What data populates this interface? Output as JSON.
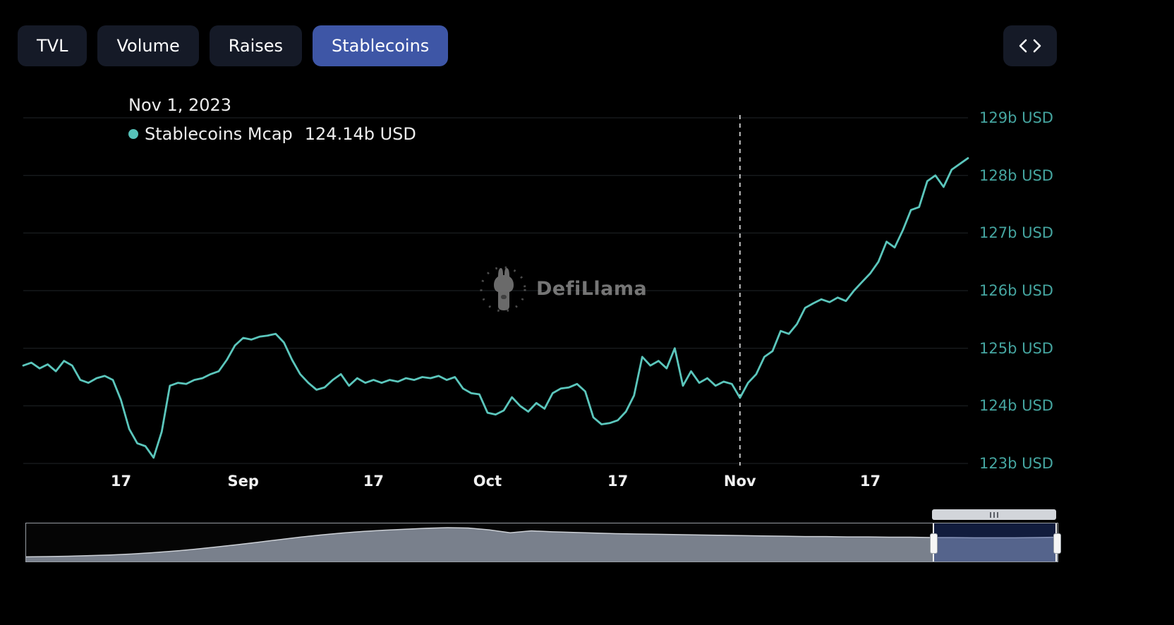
{
  "tabs": {
    "items": [
      {
        "label": "TVL",
        "active": false
      },
      {
        "label": "Volume",
        "active": false
      },
      {
        "label": "Raises",
        "active": false
      },
      {
        "label": "Stablecoins",
        "active": true
      }
    ]
  },
  "toolbar": {
    "embed_button": "embed-code"
  },
  "tooltip": {
    "date": "Nov 1, 2023",
    "series_name": "Stablecoins Mcap",
    "value": "124.14b USD",
    "dot_color": "#56c2b9"
  },
  "watermark": {
    "label": "DefiLlama"
  },
  "chart_data": {
    "type": "line",
    "title": "Stablecoins Mcap",
    "ylabel": "",
    "xlabel": "",
    "ylim": [
      123,
      129
    ],
    "line_color": "#5bc6bc",
    "axis_label_color": "#45a5a0",
    "grid_color": "#212529",
    "legend_position": "top-left",
    "grid": true,
    "y_ticks": [
      {
        "value": 129,
        "label": "129b USD"
      },
      {
        "value": 128,
        "label": "128b USD"
      },
      {
        "value": 127,
        "label": "127b USD"
      },
      {
        "value": 126,
        "label": "126b USD"
      },
      {
        "value": 125,
        "label": "125b USD"
      },
      {
        "value": 124,
        "label": "124b USD"
      },
      {
        "value": 123,
        "label": "123b USD"
      }
    ],
    "x_ticks": [
      {
        "label": "17",
        "day_index": 12,
        "date": "2023-08-17"
      },
      {
        "label": "Sep",
        "day_index": 27,
        "date": "2023-09-01"
      },
      {
        "label": "17",
        "day_index": 43,
        "date": "2023-09-17"
      },
      {
        "label": "Oct",
        "day_index": 57,
        "date": "2023-10-01"
      },
      {
        "label": "17",
        "day_index": 73,
        "date": "2023-10-17"
      },
      {
        "label": "Nov",
        "day_index": 88,
        "date": "2023-11-01"
      },
      {
        "label": "17",
        "day_index": 104,
        "date": "2023-11-17"
      }
    ],
    "marker": {
      "label": "Nov 1, 2023",
      "day_index": 88,
      "value": 124.14
    },
    "series": [
      {
        "name": "Stablecoins Mcap",
        "unit": "b USD",
        "start_date": "2023-08-05",
        "end_date": "2023-11-29",
        "frequency": "daily",
        "values": [
          124.7,
          124.75,
          124.65,
          124.72,
          124.6,
          124.78,
          124.7,
          124.45,
          124.4,
          124.48,
          124.52,
          124.45,
          124.1,
          123.6,
          123.35,
          123.3,
          123.1,
          123.55,
          124.35,
          124.4,
          124.38,
          124.45,
          124.48,
          124.55,
          124.6,
          124.8,
          125.05,
          125.18,
          125.15,
          125.2,
          125.22,
          125.25,
          125.1,
          124.8,
          124.55,
          124.4,
          124.28,
          124.32,
          124.45,
          124.55,
          124.35,
          124.48,
          124.4,
          124.45,
          124.4,
          124.45,
          124.42,
          124.48,
          124.45,
          124.5,
          124.48,
          124.52,
          124.45,
          124.5,
          124.3,
          124.22,
          124.2,
          123.88,
          123.85,
          123.92,
          124.15,
          124.0,
          123.9,
          124.05,
          123.95,
          124.22,
          124.3,
          124.32,
          124.38,
          124.25,
          123.8,
          123.68,
          123.7,
          123.75,
          123.9,
          124.18,
          124.85,
          124.7,
          124.78,
          124.65,
          125.0,
          124.35,
          124.6,
          124.4,
          124.48,
          124.35,
          124.42,
          124.38,
          124.14,
          124.4,
          124.55,
          124.85,
          124.95,
          125.3,
          125.25,
          125.42,
          125.7,
          125.78,
          125.85,
          125.8,
          125.88,
          125.82,
          126.0,
          126.15,
          126.3,
          126.5,
          126.85,
          126.75,
          127.05,
          127.4,
          127.45,
          127.9,
          128.0,
          127.8,
          128.1,
          128.2,
          128.3
        ]
      }
    ],
    "navigator": {
      "type": "area",
      "normalized_values": [
        0.08,
        0.09,
        0.1,
        0.12,
        0.14,
        0.17,
        0.21,
        0.26,
        0.32,
        0.39,
        0.46,
        0.54,
        0.62,
        0.7,
        0.77,
        0.83,
        0.88,
        0.92,
        0.95,
        0.98,
        1.0,
        0.99,
        0.93,
        0.84,
        0.9,
        0.87,
        0.85,
        0.83,
        0.81,
        0.8,
        0.79,
        0.78,
        0.77,
        0.76,
        0.75,
        0.74,
        0.73,
        0.72,
        0.72,
        0.71,
        0.71,
        0.7,
        0.7,
        0.69,
        0.69,
        0.68,
        0.68,
        0.68,
        0.69,
        0.7
      ],
      "selection_start": 0.879,
      "selection_end": 0.999
    }
  }
}
